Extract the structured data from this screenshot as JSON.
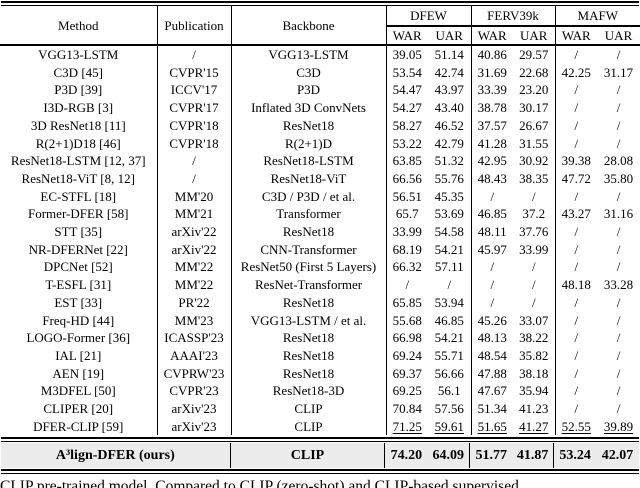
{
  "table": {
    "columns": {
      "method": "Method",
      "publication": "Publication",
      "backbone": "Backbone",
      "groups": [
        {
          "name": "DFEW",
          "sub": [
            "WAR",
            "UAR"
          ]
        },
        {
          "name": "FERV39k",
          "sub": [
            "WAR",
            "UAR"
          ]
        },
        {
          "name": "MAFW",
          "sub": [
            "WAR",
            "UAR"
          ]
        }
      ]
    },
    "rows": [
      {
        "method": "VGG13-LSTM",
        "publication": "/",
        "backbone": "VGG13-LSTM",
        "values": [
          "39.05",
          "51.14",
          "40.86",
          "29.57",
          "/",
          "/"
        ]
      },
      {
        "method": "C3D [45]",
        "publication": "CVPR'15",
        "backbone": "C3D",
        "values": [
          "53.54",
          "42.74",
          "31.69",
          "22.68",
          "42.25",
          "31.17"
        ]
      },
      {
        "method": "P3D [39]",
        "publication": "ICCV'17",
        "backbone": "P3D",
        "values": [
          "54.47",
          "43.97",
          "33.39",
          "23.20",
          "/",
          "/"
        ]
      },
      {
        "method": "I3D-RGB [3]",
        "publication": "CVPR'17",
        "backbone": "Inflated 3D ConvNets",
        "values": [
          "54.27",
          "43.40",
          "38.78",
          "30.17",
          "/",
          "/"
        ]
      },
      {
        "method": "3D ResNet18 [11]",
        "publication": "CVPR'18",
        "backbone": "ResNet18",
        "values": [
          "58.27",
          "46.52",
          "37.57",
          "26.67",
          "/",
          "/"
        ]
      },
      {
        "method": "R(2+1)D18 [46]",
        "publication": "CVPR'18",
        "backbone": "R(2+1)D",
        "values": [
          "53.22",
          "42.79",
          "41.28",
          "31.55",
          "/",
          "/"
        ]
      },
      {
        "method": "ResNet18-LSTM [12, 37]",
        "publication": "/",
        "backbone": "ResNet18-LSTM",
        "values": [
          "63.85",
          "51.32",
          "42.95",
          "30.92",
          "39.38",
          "28.08"
        ]
      },
      {
        "method": "ResNet18-ViT [8, 12]",
        "publication": "/",
        "backbone": "ResNet18-ViT",
        "values": [
          "66.56",
          "55.76",
          "48.43",
          "38.35",
          "47.72",
          "35.80"
        ]
      },
      {
        "method": "EC-STFL [18]",
        "publication": "MM'20",
        "backbone": "C3D / P3D / et al.",
        "values": [
          "56.51",
          "45.35",
          "/",
          "/",
          "/",
          "/"
        ]
      },
      {
        "method": "Former-DFER [58]",
        "publication": "MM'21",
        "backbone": "Transformer",
        "values": [
          "65.7",
          "53.69",
          "46.85",
          "37.2",
          "43.27",
          "31.16"
        ]
      },
      {
        "method": "STT [35]",
        "publication": "arXiv'22",
        "backbone": "ResNet18",
        "values": [
          "33.99",
          "54.58",
          "48.11",
          "37.76",
          "/",
          "/"
        ]
      },
      {
        "method": "NR-DFERNet [22]",
        "publication": "arXiv'22",
        "backbone": "CNN-Transformer",
        "values": [
          "68.19",
          "54.21",
          "45.97",
          "33.99",
          "/",
          "/"
        ]
      },
      {
        "method": "DPCNet [52]",
        "publication": "MM'22",
        "backbone": "ResNet50 (First 5 Layers)",
        "values": [
          "66.32",
          "57.11",
          "/",
          "/",
          "/",
          "/"
        ]
      },
      {
        "method": "T-ESFL [31]",
        "publication": "MM'22",
        "backbone": "ResNet-Transformer",
        "values": [
          "/",
          "/",
          "/",
          "/",
          "48.18",
          "33.28"
        ]
      },
      {
        "method": "EST [33]",
        "publication": "PR'22",
        "backbone": "ResNet18",
        "values": [
          "65.85",
          "53.94",
          "/",
          "/",
          "/",
          "/"
        ]
      },
      {
        "method": "Freq-HD [44]",
        "publication": "MM'23",
        "backbone": "VGG13-LSTM / et al.",
        "values": [
          "55.68",
          "46.85",
          "45.26",
          "33.07",
          "/",
          "/"
        ]
      },
      {
        "method": "LOGO-Former [36]",
        "publication": "ICASSP'23",
        "backbone": "ResNet18",
        "values": [
          "66.98",
          "54.21",
          "48.13",
          "38.22",
          "/",
          "/"
        ]
      },
      {
        "method": "IAL [21]",
        "publication": "AAAI'23",
        "backbone": "ResNet18",
        "values": [
          "69.24",
          "55.71",
          "48.54",
          "35.82",
          "/",
          "/"
        ]
      },
      {
        "method": "AEN [19]",
        "publication": "CVPRW'23",
        "backbone": "ResNet18",
        "values": [
          "69.37",
          "56.66",
          "47.88",
          "38.18",
          "/",
          "/"
        ]
      },
      {
        "method": "M3DFEL [50]",
        "publication": "CVPR'23",
        "backbone": "ResNet18-3D",
        "values": [
          "69.25",
          "56.1",
          "47.67",
          "35.94",
          "/",
          "/"
        ]
      },
      {
        "method": "CLIPER [20]",
        "publication": "arXiv'23",
        "backbone": "CLIP",
        "values": [
          "70.84",
          "57.56",
          "51.34",
          "41.23",
          "/",
          "/"
        ]
      },
      {
        "method": "DFER-CLIP [59]",
        "publication": "arXiv'23",
        "backbone": "CLIP",
        "values": [
          "71.25",
          "59.61",
          "51.65",
          "41.27",
          "52.55",
          "39.89"
        ],
        "underline": true
      }
    ],
    "final_row": {
      "method": "A³lign-DFER (ours)",
      "backbone": "CLIP",
      "values": [
        "74.20",
        "64.09",
        "51.77",
        "41.87",
        "53.24",
        "42.07"
      ]
    }
  },
  "caption": "CLIP pre-trained model. Compared to CLIP (zero-shot) and CLIP-based supervised",
  "colors": {
    "highlight_bg": "#ececec",
    "rule": "#000000"
  }
}
